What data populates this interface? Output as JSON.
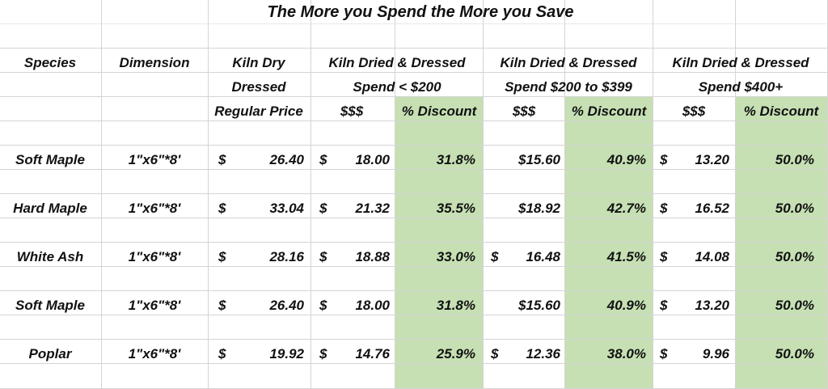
{
  "title": "The More you Spend the More you Save",
  "headers": {
    "species": "Species",
    "dimension": "Dimension",
    "kiln_dry_1": "Kiln Dry",
    "kiln_dry_2": "Dressed",
    "kiln_dry_3": "Regular Price",
    "tier1_1": "Kiln Dried & Dressed",
    "tier1_2": "Spend < $200",
    "tier2_1": "Kiln Dried & Dressed",
    "tier2_2": "Spend $200 to $399",
    "tier3_1": "Kiln Dried & Dressed",
    "tier3_2": "Spend $400+",
    "price_sym": "$$$",
    "discount": "% Discount"
  },
  "rows": [
    {
      "species": "Soft Maple",
      "dimension": "1\"x6\"*8'",
      "reg_sym": "$",
      "reg": "26.40",
      "t1_sym": "$",
      "t1": "18.00",
      "d1": "31.8%",
      "t2_sym": "",
      "t2": "$15.60",
      "d2": "40.9%",
      "t3_sym": "$",
      "t3": "13.20",
      "d3": "50.0%"
    },
    {
      "species": "Hard Maple",
      "dimension": "1\"x6\"*8'",
      "reg_sym": "$",
      "reg": "33.04",
      "t1_sym": "$",
      "t1": "21.32",
      "d1": "35.5%",
      "t2_sym": "",
      "t2": "$18.92",
      "d2": "42.7%",
      "t3_sym": "$",
      "t3": "16.52",
      "d3": "50.0%"
    },
    {
      "species": "White Ash",
      "dimension": "1\"x6\"*8'",
      "reg_sym": "$",
      "reg": "28.16",
      "t1_sym": "$",
      "t1": "18.88",
      "d1": "33.0%",
      "t2_sym": "$",
      "t2": "16.48",
      "d2": "41.5%",
      "t3_sym": "$",
      "t3": "14.08",
      "d3": "50.0%"
    },
    {
      "species": "Soft Maple",
      "dimension": "1\"x6\"*8'",
      "reg_sym": "$",
      "reg": "26.40",
      "t1_sym": "$",
      "t1": "18.00",
      "d1": "31.8%",
      "t2_sym": "",
      "t2": "$15.60",
      "d2": "40.9%",
      "t3_sym": "$",
      "t3": "13.20",
      "d3": "50.0%"
    },
    {
      "species": "Poplar",
      "dimension": "1\"x6\"*8'",
      "reg_sym": "$",
      "reg": "19.92",
      "t1_sym": "$",
      "t1": "14.76",
      "d1": "25.9%",
      "t2_sym": "$",
      "t2": "12.36",
      "d2": "38.0%",
      "t3_sym": "$",
      "t3": "9.96",
      "d3": "50.0%"
    }
  ],
  "colors": {
    "discount_fill": "#c6e0b4",
    "gridline": "#d4d4d4"
  }
}
